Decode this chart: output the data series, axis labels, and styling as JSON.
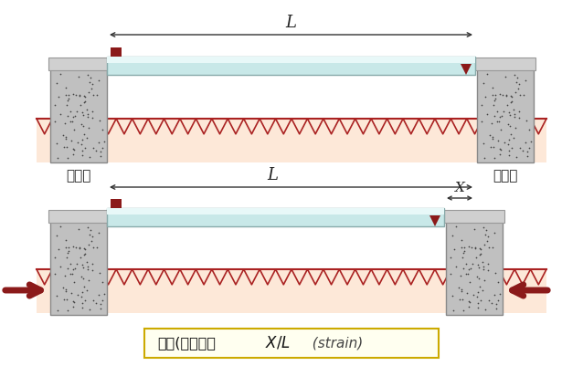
{
  "bg_color": "#ffffff",
  "ground_color": "#fde8d8",
  "hatch_color": "#aa2222",
  "block_color": "#c0c0c0",
  "block_edge_color": "#888888",
  "cap_color": "#d0d0d0",
  "cap_edge_color": "#999999",
  "tube_fill_color": "#c8e8e8",
  "tube_highlight_color": "#e8f8f8",
  "tube_edge_color": "#88aaaa",
  "pin_color": "#8B1A1A",
  "dim_arrow_color": "#333333",
  "ext_arrow_color": "#8B1A1A",
  "formula_bg": "#fffff0",
  "formula_border": "#ccaa00",
  "label_fixed": "固定端",
  "label_free": "自由端",
  "L_label": "L",
  "X_label": "X",
  "fig_w": 6.38,
  "fig_h": 4.01,
  "dpi": 100
}
